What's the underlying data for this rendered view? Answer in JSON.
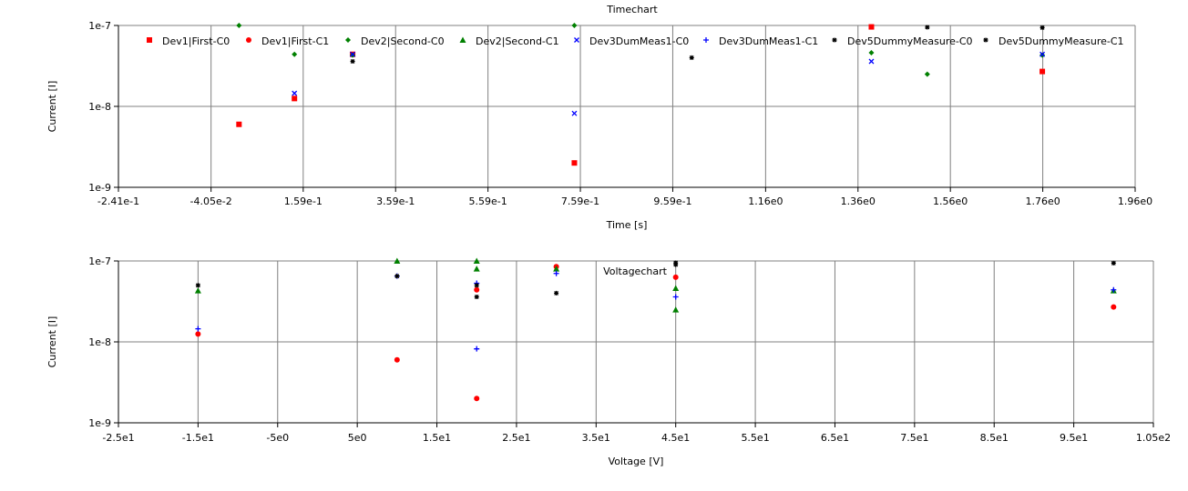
{
  "chart_data": [
    {
      "type": "scatter",
      "title": "Timechart",
      "xlabel": "Time [s]",
      "ylabel": "Current [I]",
      "xlim": [
        -0.241,
        1.96
      ],
      "ylim": [
        1e-09,
        1e-07
      ],
      "yscale": "log",
      "x_ticks": [
        "-2.41e-1",
        "-4.05e-2",
        "1.59e-1",
        "3.59e-1",
        "5.59e-1",
        "7.59e-1",
        "9.59e-1",
        "1.16e0",
        "1.36e0",
        "1.56e0",
        "1.76e0",
        "1.96e0"
      ],
      "x_tick_values": [
        -0.241,
        -0.0405,
        0.159,
        0.359,
        0.559,
        0.759,
        0.959,
        1.16,
        1.36,
        1.56,
        1.76,
        1.96
      ],
      "y_ticks": [
        "1e-7",
        "1e-8",
        "1e-9"
      ],
      "y_tick_values": [
        1e-07,
        1e-08,
        1e-09
      ],
      "grid": true,
      "legend_position": "top",
      "series": [
        {
          "name": "Dev1|First-C0",
          "color": "#ff0000",
          "marker": "square",
          "x": [
            0.02,
            0.14,
            0.266,
            0.746,
            1.389,
            1.759
          ],
          "y": [
            6e-09,
            1.25e-08,
            4.4e-08,
            2e-09,
            9.6e-08,
            2.7e-08
          ]
        },
        {
          "name": "Dev1|First-C1",
          "color": "#ff0000",
          "marker": "circle",
          "x": [],
          "y": []
        },
        {
          "name": "Dev2|Second-C0",
          "color": "#008000",
          "marker": "diamond",
          "x": [
            0.02,
            0.14,
            0.266,
            0.746,
            1.389,
            1.51,
            1.759
          ],
          "y": [
            1e-07,
            4.4e-08,
            4.3e-08,
            1e-07,
            4.6e-08,
            2.5e-08,
            4.3e-08
          ]
        },
        {
          "name": "Dev2|Second-C1",
          "color": "#008000",
          "marker": "triangle",
          "x": [],
          "y": []
        },
        {
          "name": "Dev3DumMeas1-C0",
          "color": "#0000ff",
          "marker": "x",
          "x": [
            0.14,
            0.266,
            0.746,
            1.389,
            1.759
          ],
          "y": [
            1.45e-08,
            4.4e-08,
            8.2e-09,
            3.6e-08,
            4.4e-08
          ]
        },
        {
          "name": "Dev3DumMeas1-C1",
          "color": "#0000ff",
          "marker": "plus",
          "x": [],
          "y": []
        },
        {
          "name": "Dev5DummyMeasure-C0",
          "color": "#000000",
          "marker": "star",
          "x": [
            0.266,
            1.0,
            1.51,
            1.759
          ],
          "y": [
            3.6e-08,
            4e-08,
            9.5e-08,
            9.4e-08
          ]
        },
        {
          "name": "Dev5DummyMeasure-C1",
          "color": "#000000",
          "marker": "star",
          "x": [],
          "y": []
        }
      ]
    },
    {
      "type": "scatter",
      "title": "Voltagechart",
      "xlabel": "Voltage [V]",
      "ylabel": "Current [I]",
      "xlim": [
        -25,
        105
      ],
      "ylim": [
        1e-09,
        1e-07
      ],
      "yscale": "log",
      "x_ticks": [
        "-2.5e1",
        "-1.5e1",
        "-5e0",
        "5e0",
        "1.5e1",
        "2.5e1",
        "3.5e1",
        "4.5e1",
        "5.5e1",
        "6.5e1",
        "7.5e1",
        "8.5e1",
        "9.5e1",
        "1.05e2"
      ],
      "x_tick_values": [
        -25,
        -15,
        -5,
        5,
        15,
        25,
        35,
        45,
        55,
        65,
        75,
        85,
        95,
        105
      ],
      "y_ticks": [
        "1e-7",
        "1e-8",
        "1e-9"
      ],
      "y_tick_values": [
        1e-07,
        1e-08,
        1e-09
      ],
      "grid": true,
      "series": [
        {
          "name": "Dev1|First-C0",
          "color": "#ff0000",
          "marker": "square",
          "x": [],
          "y": []
        },
        {
          "name": "Dev1|First-C1",
          "color": "#ff0000",
          "marker": "circle",
          "x": [
            -15,
            10,
            20,
            20,
            30,
            45,
            100
          ],
          "y": [
            1.25e-08,
            6e-09,
            2e-09,
            4.4e-08,
            8.5e-08,
            6.3e-08,
            2.7e-08
          ]
        },
        {
          "name": "Dev2|Second-C0",
          "color": "#008000",
          "marker": "diamond",
          "x": [],
          "y": []
        },
        {
          "name": "Dev2|Second-C1",
          "color": "#008000",
          "marker": "triangle",
          "x": [
            -15,
            10,
            20,
            20,
            30,
            45,
            45,
            100
          ],
          "y": [
            4.3e-08,
            1e-07,
            1e-07,
            8e-08,
            8e-08,
            4.6e-08,
            2.5e-08,
            4.3e-08
          ]
        },
        {
          "name": "Dev3DumMeas1-C0",
          "color": "#0000ff",
          "marker": "x",
          "x": [],
          "y": []
        },
        {
          "name": "Dev3DumMeas1-C1",
          "color": "#0000ff",
          "marker": "plus",
          "x": [
            -15,
            10,
            20,
            20,
            30,
            45,
            100
          ],
          "y": [
            1.45e-08,
            6.5e-08,
            8.2e-09,
            5.3e-08,
            7e-08,
            3.6e-08,
            4.4e-08
          ]
        },
        {
          "name": "Dev5DummyMeasure-C0",
          "color": "#000000",
          "marker": "star",
          "x": [],
          "y": []
        },
        {
          "name": "Dev5DummyMeasure-C1",
          "color": "#000000",
          "marker": "star",
          "x": [
            -15,
            10,
            20,
            20,
            30,
            45,
            45,
            100
          ],
          "y": [
            5e-08,
            6.5e-08,
            5e-08,
            3.6e-08,
            4e-08,
            9.5e-08,
            9e-08,
            9.4e-08
          ]
        }
      ]
    }
  ]
}
